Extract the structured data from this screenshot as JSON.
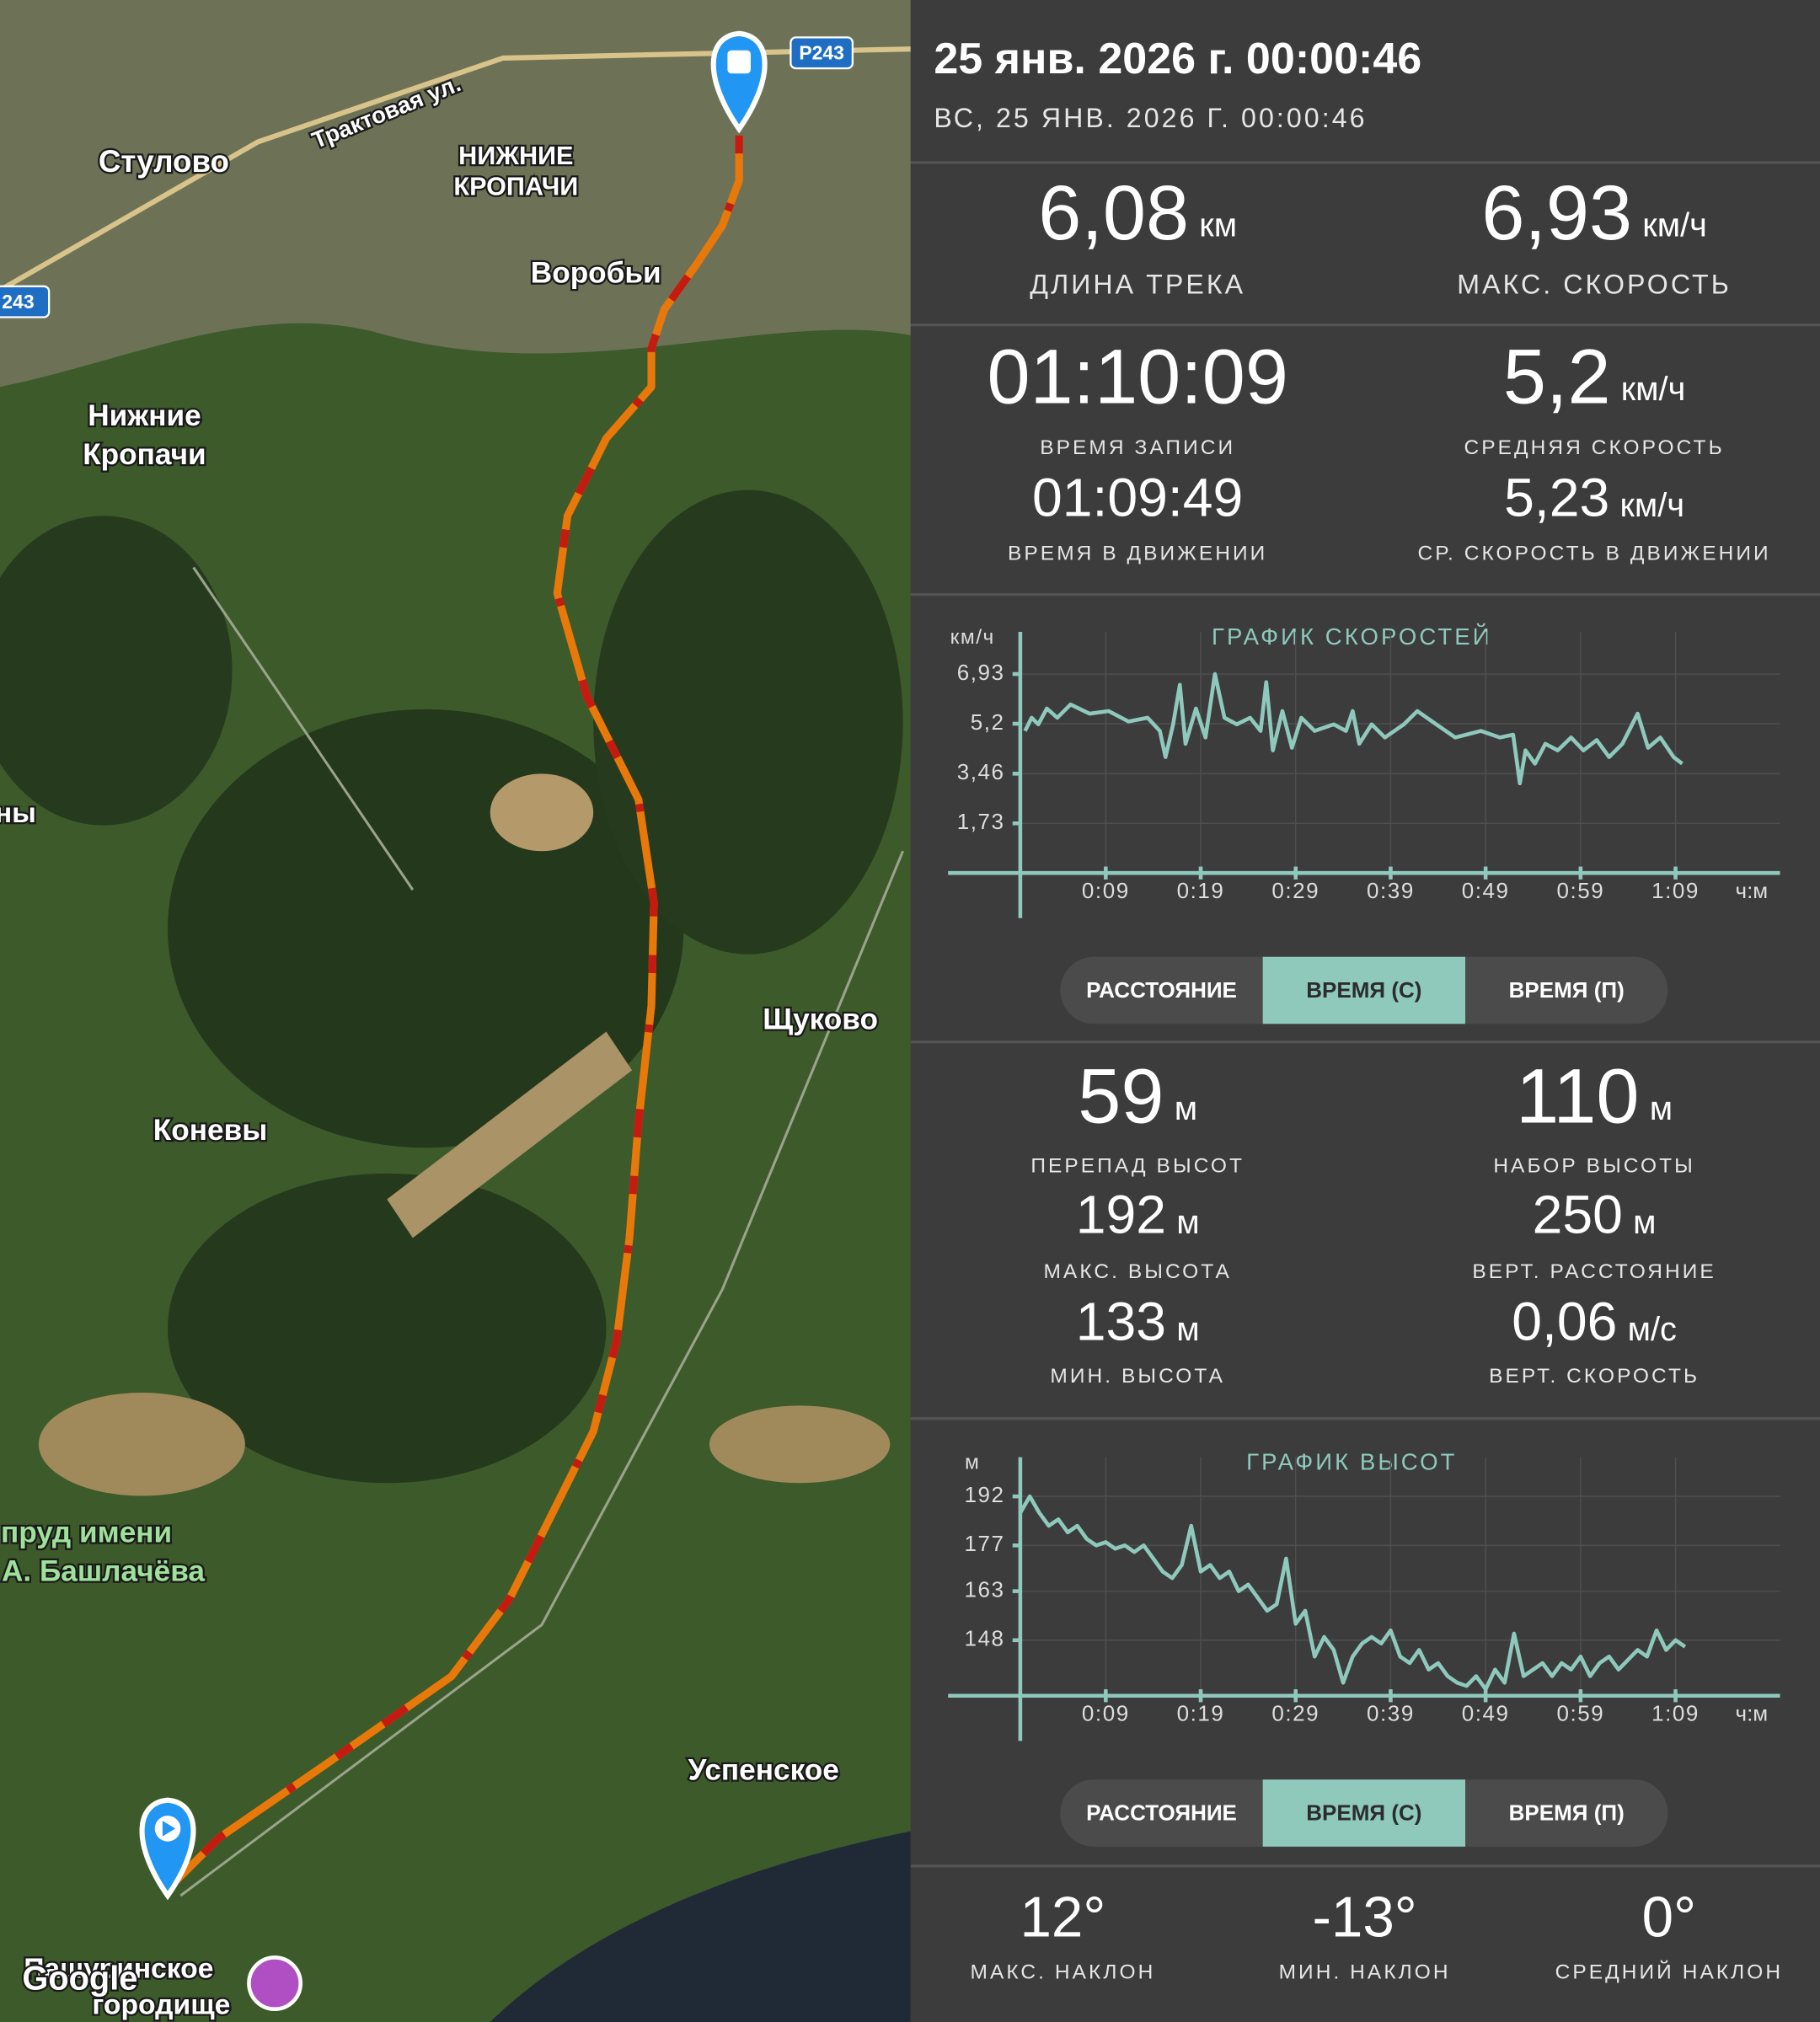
{
  "map": {
    "labels": [
      "Трактовая ул.",
      "Стулово",
      "НИЖНИЕ",
      "КРОПАЧИ",
      "Воробьи",
      "Нижние",
      "Кропачи",
      "ны",
      "Щуково",
      "Коневы",
      "пруд имени",
      "А. Башлачёва",
      "Успенское",
      "Пашуринское",
      "городище",
      "Google"
    ],
    "road_signs": [
      "Р243",
      "243"
    ]
  },
  "header": {
    "title": "25 янв. 2026 г. 00:00:46",
    "subtitle": "ВС, 25 ЯНВ. 2026 Г. 00:00:46"
  },
  "stats": {
    "distance": [
      {
        "value": "6,08",
        "unit": "км",
        "label": "ДЛИНА ТРЕКА"
      },
      {
        "value": "6,93",
        "unit": "км/ч",
        "label": "МАКС. СКОРОСТЬ"
      }
    ],
    "time": [
      {
        "value": "01:10:09",
        "label": "ВРЕМЯ ЗАПИСИ"
      },
      {
        "value": "5,2",
        "unit": "км/ч",
        "label": "СРЕДНЯЯ СКОРОСТЬ"
      },
      {
        "value": "01:09:49",
        "label": "ВРЕМЯ В ДВИЖЕНИИ"
      },
      {
        "value": "5,23",
        "unit": "км/ч",
        "label": "СР. СКОРОСТЬ В ДВИЖЕНИИ"
      }
    ],
    "altitude": [
      {
        "value": "59",
        "unit": "м",
        "label": "ПЕРЕПАД ВЫСОТ"
      },
      {
        "value": "110",
        "unit": "м",
        "label": "НАБОР ВЫСОТЫ"
      },
      {
        "value": "192",
        "unit": "м",
        "label": "МАКС. ВЫСОТА"
      },
      {
        "value": "250",
        "unit": "м",
        "label": "ВЕРТ. РАССТОЯНИЕ"
      },
      {
        "value": "133",
        "unit": "м",
        "label": "МИН. ВЫСОТА"
      },
      {
        "value": "0,06",
        "unit": "м/с",
        "label": "ВЕРТ. СКОРОСТЬ"
      }
    ],
    "slope": [
      {
        "value": "12°",
        "label": "МАКС. НАКЛОН"
      },
      {
        "value": "-13°",
        "label": "МИН. НАКЛОН"
      },
      {
        "value": "0°",
        "label": "СРЕДНИЙ НАКЛОН"
      }
    ]
  },
  "tab_bars": [
    {
      "tabs": [
        "РАССТОЯНИЕ",
        "ВРЕМЯ (С)",
        "ВРЕМЯ (П)"
      ],
      "active": 1
    },
    {
      "tabs": [
        "РАССТОЯНИЕ",
        "ВРЕМЯ (С)",
        "ВРЕМЯ (П)"
      ],
      "active": 1
    }
  ],
  "chart_data": [
    {
      "type": "line",
      "title": "ГРАФИК СКОРОСТЕЙ",
      "y_label": "км/ч",
      "x_label": "ч:м",
      "grid": true,
      "x": [
        0.5,
        1.2,
        1.9,
        2.8,
        3.9,
        5.3,
        7.3,
        9.3,
        11.4,
        13.4,
        14.7,
        15.3,
        16.1,
        16.8,
        17.4,
        18.5,
        19.5,
        20.5,
        21.5,
        22.8,
        24.2,
        25.3,
        25.9,
        26.6,
        27.6,
        28.6,
        29.6,
        31.0,
        33.0,
        34.3,
        35.0,
        35.7,
        37.0,
        38.4,
        40.4,
        41.8,
        43.8,
        45.8,
        48.5,
        50.5,
        51.9,
        52.6,
        53.2,
        54.2,
        55.3,
        56.6,
        58.0,
        59.3,
        60.7,
        62.0,
        63.4,
        65.0,
        66.1,
        67.4,
        68.8,
        69.7
      ],
      "series": [
        {
          "color": "#8ec9bc",
          "values": [
            4.95,
            5.41,
            5.18,
            5.73,
            5.41,
            5.87,
            5.55,
            5.64,
            5.28,
            5.41,
            4.95,
            4.04,
            5.18,
            6.56,
            4.5,
            5.73,
            4.72,
            6.93,
            5.41,
            5.18,
            5.41,
            4.95,
            6.65,
            4.27,
            5.64,
            4.36,
            5.41,
            4.95,
            5.18,
            4.95,
            5.64,
            4.5,
            5.18,
            4.72,
            5.18,
            5.64,
            5.18,
            4.72,
            4.95,
            4.72,
            4.82,
            3.12,
            4.27,
            3.81,
            4.5,
            4.27,
            4.72,
            4.27,
            4.63,
            4.04,
            4.5,
            5.55,
            4.36,
            4.72,
            4.04,
            3.81
          ]
        }
      ],
      "xlim": [
        0,
        80
      ],
      "ylim": [
        0,
        8.4
      ],
      "xticks": [
        {
          "value": 9,
          "label": "0:09"
        },
        {
          "value": 19,
          "label": "0:19"
        },
        {
          "value": 29,
          "label": "0:29"
        },
        {
          "value": 39,
          "label": "0:39"
        },
        {
          "value": 49,
          "label": "0:49"
        },
        {
          "value": 59,
          "label": "0:59"
        },
        {
          "value": 69,
          "label": "1:09"
        }
      ],
      "yticks": [
        {
          "value": 1.73,
          "label": "1,73"
        },
        {
          "value": 3.46,
          "label": "3,46"
        },
        {
          "value": 5.2,
          "label": "5,2"
        },
        {
          "value": 6.93,
          "label": "6,93"
        }
      ]
    },
    {
      "type": "line",
      "title": "ГРАФИК ВЫСОТ",
      "y_label": "м",
      "x_label": "ч:м",
      "grid": true,
      "x": [
        0,
        1,
        2,
        3,
        4,
        5,
        6,
        7,
        8,
        9,
        10,
        11,
        12,
        13,
        14,
        15,
        16,
        17,
        18,
        19,
        20,
        21,
        22,
        23,
        24,
        25,
        26,
        27,
        28,
        29,
        30,
        31,
        32,
        33,
        34,
        35,
        36,
        37,
        38,
        39,
        40,
        41,
        42,
        43,
        44,
        45,
        46,
        47,
        48,
        49,
        50,
        51,
        52,
        53,
        54,
        55,
        56,
        57,
        58,
        59,
        60,
        61,
        62,
        63,
        64,
        65,
        66,
        67,
        68,
        69,
        70
      ],
      "series": [
        {
          "color": "#8ec9bc",
          "values": [
            187,
            192,
            187,
            183,
            185,
            181,
            183,
            179,
            177,
            178,
            176,
            177,
            175,
            177,
            173,
            169,
            167,
            171,
            183,
            169,
            171,
            167,
            169,
            163,
            165,
            161,
            157,
            159,
            173,
            153,
            157,
            143,
            149,
            145,
            135,
            143,
            147,
            149,
            147,
            151,
            143,
            141,
            145,
            139,
            141,
            137,
            135,
            134,
            137,
            133,
            139,
            135,
            150,
            137,
            139,
            141,
            137,
            141,
            139,
            143,
            137,
            141,
            143,
            139,
            142,
            145,
            143,
            151,
            145,
            148,
            146
          ]
        }
      ],
      "xlim": [
        0,
        80
      ],
      "ylim": [
        131,
        204
      ],
      "xticks": [
        {
          "value": 9,
          "label": "0:09"
        },
        {
          "value": 19,
          "label": "0:19"
        },
        {
          "value": 29,
          "label": "0:29"
        },
        {
          "value": 39,
          "label": "0:39"
        },
        {
          "value": 49,
          "label": "0:49"
        },
        {
          "value": 59,
          "label": "0:59"
        },
        {
          "value": 69,
          "label": "1:09"
        }
      ],
      "yticks": [
        148,
        163,
        177,
        192
      ]
    }
  ]
}
